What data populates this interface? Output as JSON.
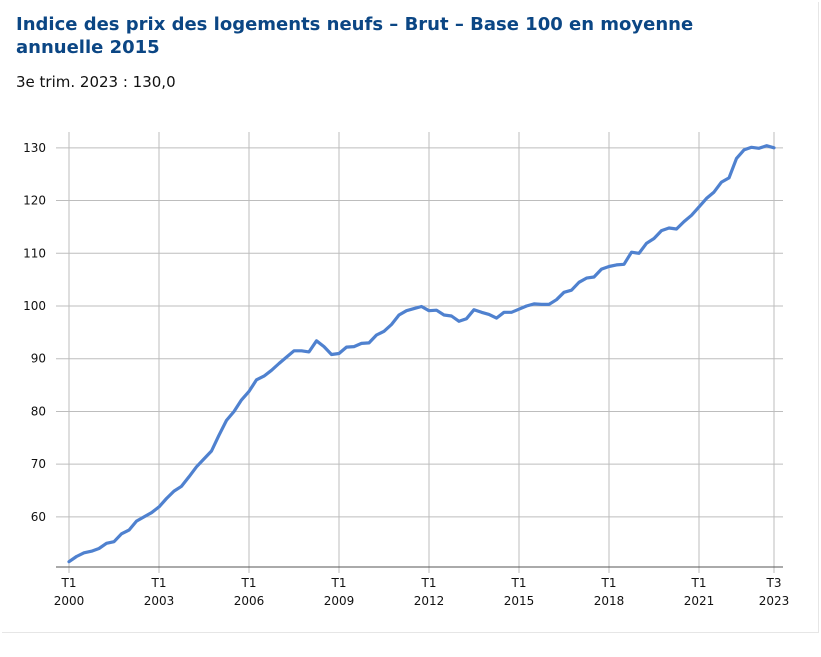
{
  "title": "Indice des prix des logements neufs – Brut – Base 100 en moyenne annuelle 2015",
  "subtitle": "3e trim. 2023 : 130,0",
  "colors": {
    "title": "#0b4684",
    "line": "#4f81cf",
    "grid": "#bdbdbd",
    "axis": "#555555"
  },
  "chart_data": {
    "type": "line",
    "title": "Indice des prix des logements neufs – Brut – Base 100 en moyenne annuelle 2015",
    "subtitle": "3e trim. 2023 : 130,0",
    "xlabel": "",
    "ylabel": "",
    "ylim": [
      50.5,
      133
    ],
    "yticks": [
      60,
      70,
      80,
      90,
      100,
      110,
      120,
      130
    ],
    "grid": true,
    "legend": "none",
    "x_start": "2000-T1",
    "x_end": "2023-T3",
    "xticks": [
      {
        "period": "2000-T1",
        "line1": "T1",
        "line2": "2000"
      },
      {
        "period": "2003-T1",
        "line1": "T1",
        "line2": "2003"
      },
      {
        "period": "2006-T1",
        "line1": "T1",
        "line2": "2006"
      },
      {
        "period": "2009-T1",
        "line1": "T1",
        "line2": "2009"
      },
      {
        "period": "2012-T1",
        "line1": "T1",
        "line2": "2012"
      },
      {
        "period": "2015-T1",
        "line1": "T1",
        "line2": "2015"
      },
      {
        "period": "2018-T1",
        "line1": "T1",
        "line2": "2018"
      },
      {
        "period": "2021-T1",
        "line1": "T1",
        "line2": "2021"
      },
      {
        "period": "2023-T3",
        "line1": "T3",
        "line2": "2023"
      }
    ],
    "series": [
      {
        "values": [
          51.5,
          52.5,
          53.2,
          53.5,
          54.0,
          55.0,
          55.3,
          56.8,
          57.5,
          59.2,
          60.0,
          60.8,
          61.9,
          63.5,
          64.9,
          65.8,
          67.6,
          69.5,
          71.0,
          72.5,
          75.5,
          78.3,
          80.0,
          82.2,
          83.8,
          86.0,
          86.7,
          87.8,
          89.1,
          90.3,
          91.5,
          91.5,
          91.3,
          93.4,
          92.3,
          90.8,
          91.0,
          92.2,
          92.3,
          92.9,
          93.0,
          94.5,
          95.2,
          96.5,
          98.3,
          99.1,
          99.5,
          99.9,
          99.1,
          99.2,
          98.3,
          98.1,
          97.1,
          97.6,
          99.3,
          98.8,
          98.4,
          97.7,
          98.8,
          98.8,
          99.4,
          100.0,
          100.4,
          100.3,
          100.3,
          101.2,
          102.6,
          103.0,
          104.5,
          105.3,
          105.5,
          107.0,
          107.5,
          107.8,
          107.9,
          110.2,
          110.0,
          111.9,
          112.8,
          114.3,
          114.8,
          114.6,
          116.0,
          117.2,
          118.8,
          120.4,
          121.6,
          123.5,
          124.3,
          128.0,
          129.6,
          130.1,
          129.9,
          130.4,
          130.0
        ]
      }
    ]
  }
}
